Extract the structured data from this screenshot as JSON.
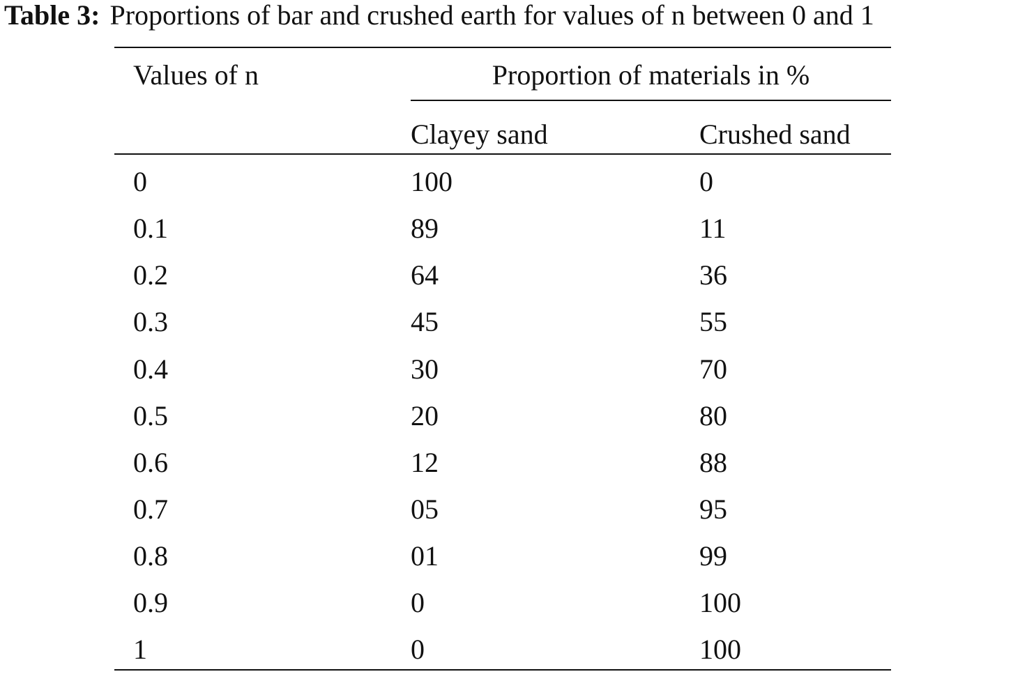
{
  "table": {
    "caption_label": "Table 3:",
    "caption_text": "Proportions of bar and crushed earth for values of n between 0 and 1",
    "header_col1": "Values of n",
    "header_group": "Proportion of materials in %",
    "header_col2": "Clayey sand",
    "header_col3": "Crushed sand",
    "rows": [
      [
        "0",
        "100",
        "0"
      ],
      [
        "0.1",
        "89",
        "11"
      ],
      [
        "0.2",
        "64",
        "36"
      ],
      [
        "0.3",
        "45",
        "55"
      ],
      [
        "0.4",
        "30",
        "70"
      ],
      [
        "0.5",
        "20",
        "80"
      ],
      [
        "0.6",
        "12",
        "88"
      ],
      [
        "0.7",
        "05",
        "95"
      ],
      [
        "0.8",
        "01",
        "99"
      ],
      [
        "0.9",
        "0",
        "100"
      ],
      [
        "1",
        "0",
        "100"
      ]
    ]
  }
}
